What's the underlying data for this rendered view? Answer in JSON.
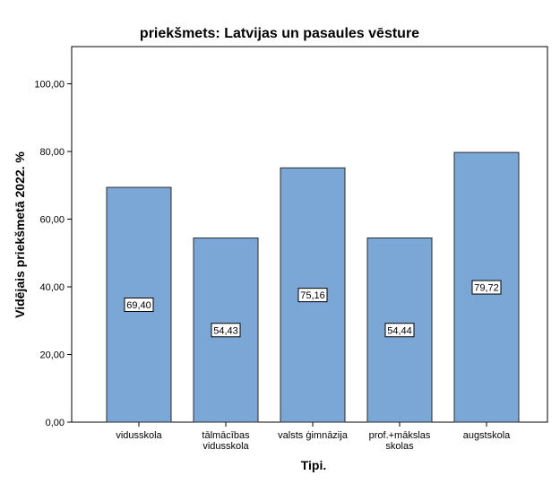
{
  "chart_data": {
    "type": "bar",
    "title": "priekšmets: Latvijas un pasaules vēsture",
    "xlabel": "Tipi.",
    "ylabel": "Vidējais priekšmetā 2022. %",
    "categories": [
      [
        "vidusskola"
      ],
      [
        "tālmācības",
        "vidusskola"
      ],
      [
        "valsts ģimnāzija"
      ],
      [
        "prof.+mākslas",
        "skolas"
      ],
      [
        "augstskola"
      ]
    ],
    "values": [
      69.4,
      54.43,
      75.16,
      54.44,
      79.72
    ],
    "data_labels": [
      "69,40",
      "54,43",
      "75,16",
      "54,44",
      "79,72"
    ],
    "yticks": [
      0,
      20,
      40,
      60,
      80,
      100
    ],
    "ytick_labels": [
      "0,00",
      "20,00",
      "40,00",
      "60,00",
      "80,00",
      "100,00"
    ],
    "ylim": [
      0,
      111
    ],
    "grid": false,
    "colors": {
      "bar_fill": "#7ba7d6",
      "bar_stroke": "#2b2b2b",
      "axis": "#000000"
    }
  }
}
